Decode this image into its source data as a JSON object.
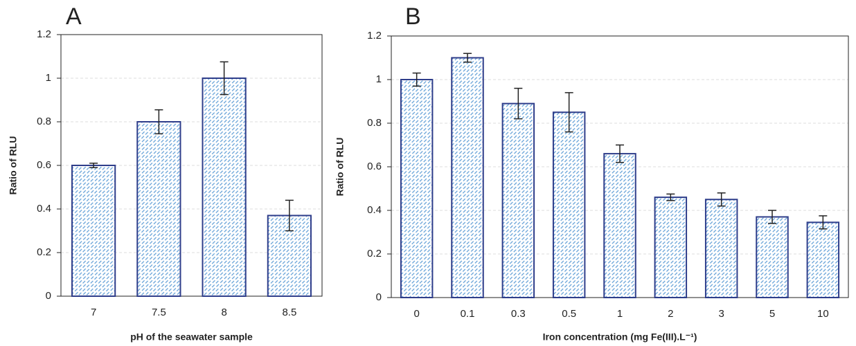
{
  "chart_data": [
    {
      "type": "bar",
      "title": "A",
      "x_label": "pH of the seawater sample",
      "y_label": "Ratio of RLU",
      "categories": [
        "7",
        "7.5",
        "8",
        "8.5"
      ],
      "values": [
        0.6,
        0.8,
        1.0,
        0.37
      ],
      "errors": [
        0.01,
        0.055,
        0.075,
        0.07
      ],
      "color": "#5b9bd5",
      "edge_color": "#2e3d8a",
      "ylim": [
        0,
        1.2
      ],
      "yticks": [
        0,
        0.2,
        0.4,
        0.6,
        0.8,
        1,
        1.2
      ],
      "grid": true
    },
    {
      "type": "bar",
      "title": "B",
      "x_label": "Iron concentration (mg Fe(III).L⁻¹)",
      "y_label": "Ratio of RLU",
      "categories": [
        "0",
        "0.1",
        "0.3",
        "0.5",
        "1",
        "2",
        "3",
        "5",
        "10"
      ],
      "values": [
        1.0,
        1.1,
        0.89,
        0.85,
        0.66,
        0.46,
        0.45,
        0.37,
        0.345
      ],
      "errors": [
        0.03,
        0.02,
        0.07,
        0.09,
        0.04,
        0.015,
        0.03,
        0.03,
        0.03
      ],
      "color": "#5b9bd5",
      "edge_color": "#2e3d8a",
      "ylim": [
        0,
        1.2
      ],
      "yticks": [
        0,
        0.2,
        0.4,
        0.6,
        0.8,
        1,
        1.2
      ],
      "grid": true
    }
  ]
}
